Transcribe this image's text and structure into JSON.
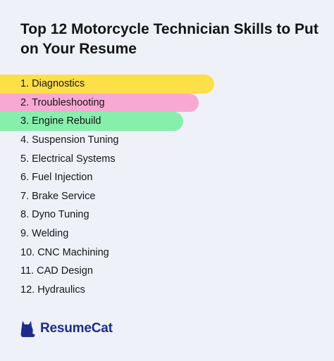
{
  "title": "Top 12 Motorcycle Technician Skills to Put on Your Resume",
  "skills": [
    {
      "number": "1",
      "label": "Diagnostics",
      "highlight": "#fde047"
    },
    {
      "number": "2",
      "label": "Troubleshooting",
      "highlight": "#f9a8d4"
    },
    {
      "number": "3",
      "label": "Engine Rebuild",
      "highlight": "#86efac"
    },
    {
      "number": "4",
      "label": "Suspension Tuning",
      "highlight": null
    },
    {
      "number": "5",
      "label": "Electrical Systems",
      "highlight": null
    },
    {
      "number": "6",
      "label": "Fuel Injection",
      "highlight": null
    },
    {
      "number": "7",
      "label": "Brake Service",
      "highlight": null
    },
    {
      "number": "8",
      "label": "Dyno Tuning",
      "highlight": null
    },
    {
      "number": "9",
      "label": "Welding",
      "highlight": null
    },
    {
      "number": "10",
      "label": "CNC Machining",
      "highlight": null
    },
    {
      "number": "11",
      "label": "CAD Design",
      "highlight": null
    },
    {
      "number": "12",
      "label": "Hydraulics",
      "highlight": null
    }
  ],
  "brand": {
    "name": "ResumeCat",
    "icon": "cat-icon",
    "color": "#1d2b8f"
  },
  "background": "#eef1f7"
}
